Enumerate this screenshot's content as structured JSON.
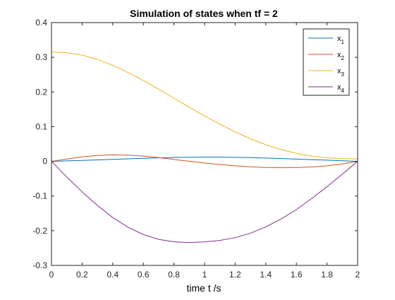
{
  "chart_data": {
    "type": "line",
    "title": "Simulation of states when tf = 2",
    "xlabel": "time t /s",
    "ylabel": "",
    "xlim": [
      0,
      2
    ],
    "ylim": [
      -0.3,
      0.4
    ],
    "xticks": [
      0,
      0.2,
      0.4,
      0.6,
      0.8,
      1,
      1.2,
      1.4,
      1.6,
      1.8,
      2
    ],
    "xtick_labels": [
      "0",
      "0.2",
      "0.4",
      "0.6",
      "0.8",
      "1",
      "1.2",
      "1.4",
      "1.6",
      "1.8",
      "2"
    ],
    "yticks": [
      -0.3,
      -0.2,
      -0.1,
      0,
      0.1,
      0.2,
      0.3,
      0.4
    ],
    "ytick_labels": [
      "-0.3",
      "-0.2",
      "-0.1",
      "0",
      "0.1",
      "0.2",
      "0.3",
      "0.4"
    ],
    "grid": false,
    "legend_position": "top-right",
    "x": [
      0,
      0.1,
      0.2,
      0.3,
      0.4,
      0.5,
      0.6,
      0.7,
      0.8,
      0.9,
      1.0,
      1.1,
      1.2,
      1.3,
      1.4,
      1.5,
      1.6,
      1.7,
      1.8,
      1.9,
      2.0
    ],
    "series": [
      {
        "name": "x1",
        "legend_base": "x",
        "legend_sub": "1",
        "color": "#0072BD",
        "values": [
          0.0,
          0.0013,
          0.0027,
          0.0042,
          0.0058,
          0.0073,
          0.0088,
          0.0101,
          0.0112,
          0.0119,
          0.0122,
          0.0121,
          0.0116,
          0.0107,
          0.0095,
          0.0081,
          0.0066,
          0.005,
          0.0034,
          0.0017,
          0.0
        ]
      },
      {
        "name": "x2",
        "legend_base": "x",
        "legend_sub": "2",
        "color": "#D95319",
        "values": [
          0.0,
          0.0068,
          0.0128,
          0.017,
          0.0188,
          0.018,
          0.0152,
          0.0108,
          0.0056,
          0.0002,
          -0.0048,
          -0.0092,
          -0.0129,
          -0.0158,
          -0.0176,
          -0.0184,
          -0.018,
          -0.0162,
          -0.0128,
          -0.0074,
          0.0
        ]
      },
      {
        "name": "x3",
        "legend_base": "x",
        "legend_sub": "3",
        "color": "#EDB120",
        "values": [
          0.315,
          0.313,
          0.306,
          0.294,
          0.277,
          0.256,
          0.233,
          0.208,
          0.182,
          0.156,
          0.131,
          0.107,
          0.085,
          0.065,
          0.048,
          0.034,
          0.023,
          0.015,
          0.01,
          0.008,
          0.007
        ]
      },
      {
        "name": "x4",
        "legend_base": "x",
        "legend_sub": "4",
        "color": "#7E2F8E",
        "values": [
          0.0,
          -0.045,
          -0.088,
          -0.127,
          -0.162,
          -0.19,
          -0.211,
          -0.225,
          -0.232,
          -0.234,
          -0.232,
          -0.228,
          -0.22,
          -0.207,
          -0.189,
          -0.166,
          -0.139,
          -0.107,
          -0.073,
          -0.037,
          0.0
        ]
      }
    ]
  }
}
